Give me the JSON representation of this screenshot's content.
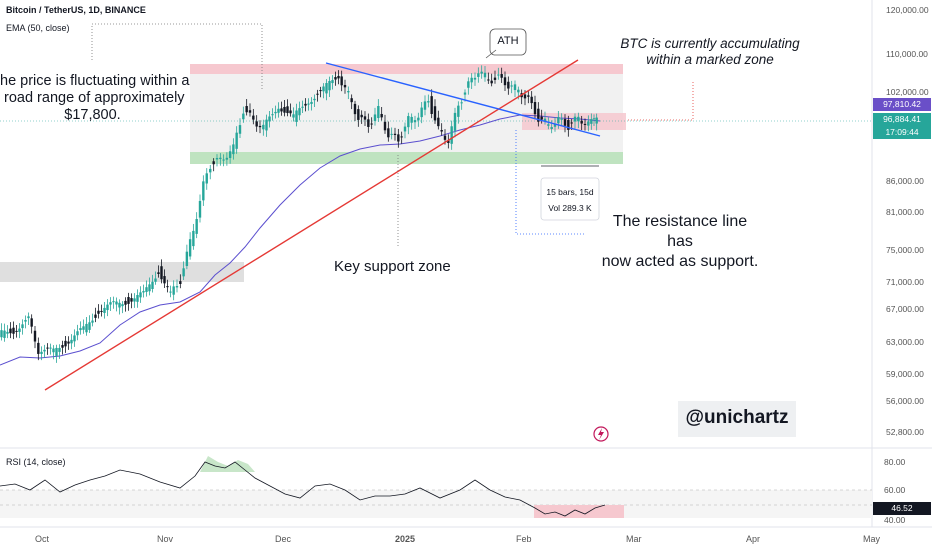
{
  "header": {
    "symbol": "Bitcoin / TetherUS, 1D, BINANCE",
    "indicator": "EMA (50, close)"
  },
  "price_axis": [
    "120,000.00",
    "110,000.00",
    "102,000.00",
    "86,000.00",
    "81,000.00",
    "75,000.00",
    "71,000.00",
    "67,000.00",
    "63,000.00",
    "59,000.00",
    "56,000.00",
    "52,800.00"
  ],
  "price_badges": {
    "ema": "97,810.42",
    "price": "96,884.41",
    "countdown": "17:09:44"
  },
  "rsi": {
    "label": "RSI (14, close)",
    "axis": [
      "80.00",
      "60.00",
      "40.00"
    ],
    "value": "46.52"
  },
  "time_axis": [
    "Oct",
    "Nov",
    "Dec",
    "2025",
    "Feb",
    "Mar",
    "Apr",
    "May"
  ],
  "annotations": {
    "left_line1": "he price is fluctuating within a",
    "left_line2": "road range of approximately",
    "left_line3": "$17,800.",
    "ath": "ATH",
    "right_line1": "BTC is currently accumulating",
    "right_line2": "within a marked zone",
    "key_support": "Key support zone",
    "resist_line1": "The resistance line has",
    "resist_line2": "now acted as support.",
    "bars_line1": "15 bars, 15d",
    "bars_line2": "Vol 289.3 K",
    "watermark": "@unichartz"
  },
  "colors": {
    "up": "#26a69a",
    "down": "#131722",
    "ema": "#5b4fcf",
    "trend_red": "#e53935",
    "trend_blue": "#2962ff",
    "zone_red": "#f6c8cf",
    "zone_green": "#bfe3c0",
    "zone_gray": "#d9d9d9",
    "rsi_line": "#131722"
  },
  "chart_data": {
    "type": "candlestick",
    "xlabel": "",
    "ylabel": "",
    "price_range": [
      52800,
      120000
    ],
    "x": [
      "2024-09-20",
      "2024-09-27",
      "2024-10-04",
      "2024-10-11",
      "2024-10-18",
      "2024-10-25",
      "2024-11-01",
      "2024-11-08",
      "2024-11-15",
      "2024-11-22",
      "2024-11-29",
      "2024-12-06",
      "2024-12-13",
      "2024-12-20",
      "2024-12-27",
      "2025-01-03",
      "2025-01-10",
      "2025-01-17",
      "2025-01-24",
      "2025-01-31",
      "2025-02-07",
      "2025-02-14",
      "2025-02-19"
    ],
    "close": [
      63000,
      65500,
      62000,
      63000,
      68500,
      67000,
      70000,
      76000,
      91000,
      98000,
      96500,
      99500,
      101500,
      97000,
      95000,
      98000,
      94500,
      104000,
      104500,
      101500,
      97500,
      97000,
      96884
    ],
    "series": [
      {
        "name": "EMA (50, close)",
        "values": [
          60500,
          61500,
          62000,
          62300,
          63500,
          64500,
          66000,
          68500,
          73500,
          79000,
          84000,
          88000,
          91500,
          93500,
          94500,
          95500,
          96200,
          97000,
          97900,
          98400,
          98300,
          98000,
          97810
        ]
      }
    ],
    "zones": [
      {
        "name": "resistance",
        "range": [
          102000,
          108500
        ]
      },
      {
        "name": "support",
        "range": [
          90000,
          92500
        ]
      },
      {
        "name": "accumulation",
        "range": [
          95000,
          100000
        ]
      },
      {
        "name": "old range",
        "range": [
          70500,
          72500
        ]
      }
    ],
    "rsi": {
      "name": "RSI (14, close)",
      "range": [
        40,
        80
      ],
      "last": 46.52,
      "upper_band": 60,
      "lower_band": 40
    }
  }
}
